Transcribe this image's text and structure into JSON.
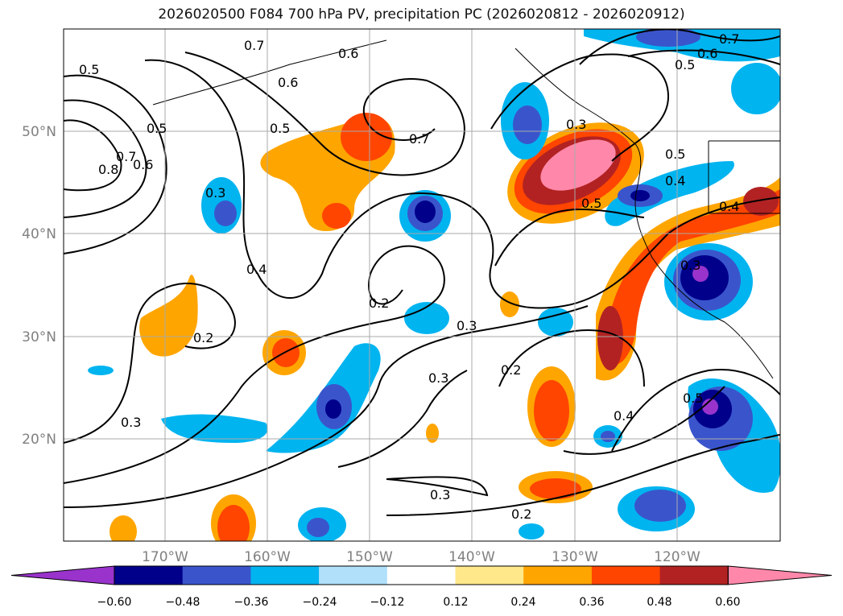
{
  "title": "2026020500 F084 700 hPa PV, precipitation PC (2026020812 - 2026020912)",
  "map": {
    "lon_labels": [
      "170°W",
      "160°W",
      "150°W",
      "140°W",
      "130°W",
      "120°W"
    ],
    "lat_labels": [
      "50°N",
      "40°N",
      "30°N",
      "20°N"
    ],
    "contour_labels": [
      "0.7",
      "0.6",
      "0.5",
      "0.8",
      "0.7",
      "0.6",
      "0.5",
      "0.6",
      "0.5",
      "0.3",
      "0.7",
      "0.4",
      "0.3",
      "0.5",
      "0.4",
      "0.4",
      "0.5",
      "0.2",
      "0.3",
      "0.2",
      "0.2",
      "0.3",
      "0.4",
      "0.5",
      "0.3",
      "0.3",
      "0.2",
      "0.7",
      "0.6",
      "0.5",
      "0.3"
    ]
  },
  "colorbar": {
    "ticks": [
      "−0.60",
      "−0.48",
      "−0.36",
      "−0.24",
      "−0.12",
      "0.12",
      "0.24",
      "0.36",
      "0.48",
      "0.60"
    ],
    "colors": [
      "#9933cc",
      "#00008b",
      "#3a55cc",
      "#00b4f0",
      "#b0e0fa",
      "#ffffff",
      "#ffe88a",
      "#ffa500",
      "#ff4500",
      "#b22222",
      "#ff88aa"
    ]
  }
}
